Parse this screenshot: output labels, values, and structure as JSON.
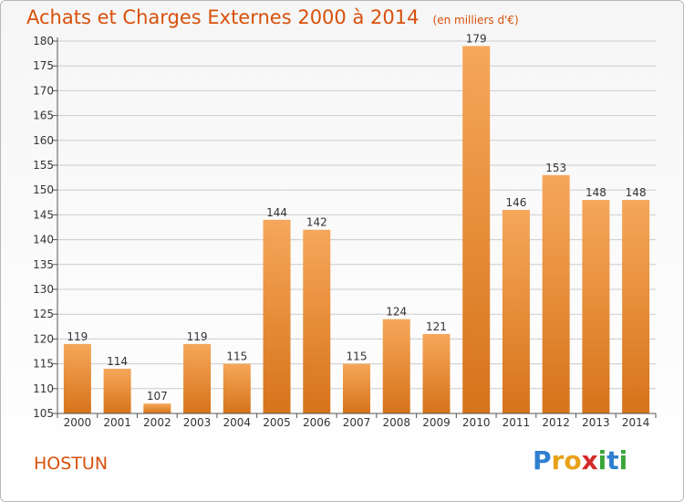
{
  "title": "Achats et Charges Externes 2000 à 2014",
  "subtitle": "(en milliers d'€)",
  "place_name": "HOSTUN",
  "brand": {
    "letters": [
      "P",
      "r",
      "o",
      "x",
      "i",
      "t",
      "i"
    ],
    "colors": [
      "#2f7fd0",
      "#e8a21a",
      "#e8a21a",
      "#d42a2a",
      "#3aa63a",
      "#2f7fd0",
      "#3aa63a"
    ]
  },
  "colors": {
    "accent": "#d8500a",
    "bar_top": "#f6a75a",
    "bar_bottom": "#d6731a",
    "grid": "#cccccc"
  },
  "chart_data": {
    "type": "bar",
    "title": "Achats et Charges Externes 2000 à 2014",
    "subtitle": "(en milliers d'€)",
    "xlabel": "",
    "ylabel": "",
    "categories": [
      "2000",
      "2001",
      "2002",
      "2003",
      "2004",
      "2005",
      "2006",
      "2007",
      "2008",
      "2009",
      "2010",
      "2011",
      "2012",
      "2013",
      "2014"
    ],
    "values": [
      119,
      114,
      107,
      119,
      115,
      144,
      142,
      115,
      124,
      121,
      179,
      146,
      153,
      148,
      148
    ],
    "ylim": [
      105,
      180
    ],
    "yticks": [
      105,
      110,
      115,
      120,
      125,
      130,
      135,
      140,
      145,
      150,
      155,
      160,
      165,
      170,
      175,
      180
    ],
    "grid": true,
    "data_labels": true
  }
}
